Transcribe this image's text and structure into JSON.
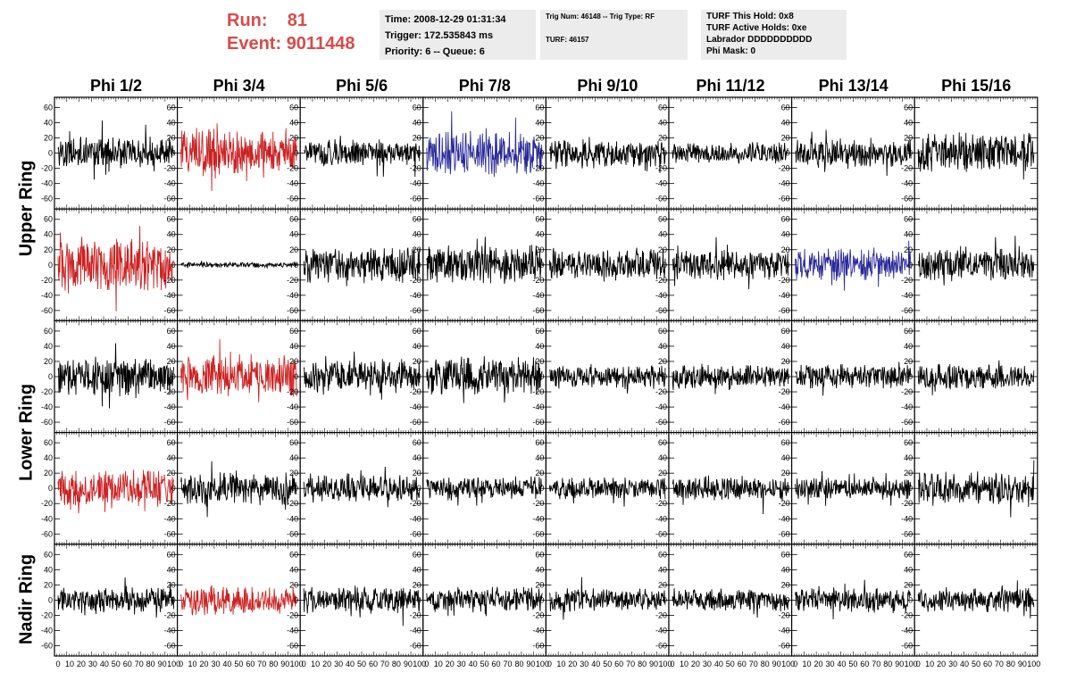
{
  "header": {
    "run_label": "Run:",
    "run_value": "81",
    "event_label": "Event:",
    "event_value": "9011448",
    "time_text": "Time: 2008-12-29 01:31:34",
    "trigger_text": "Trigger: 172.535843 ms",
    "priority_text": "Priority: 6 -- Queue: 6",
    "trig_num_text": "Trig Num: 46148 -- Trig Type: RF",
    "turf_text": "TURF: 46157",
    "turf_hold_text": "TURF This Hold: 0x8",
    "turf_active_text": "TURF Active Holds: 0xe",
    "labrador_text": "Labrador DDDDDDDDDD",
    "phi_mask_text": "Phi Mask: 0"
  },
  "colors": {
    "accent": "#d94a4a",
    "trace_default": "#000000",
    "trace_red": "#cc2222",
    "trace_blue": "#2a2a99",
    "info_bg": "#ececec"
  },
  "chart_data": {
    "type": "line",
    "columns": [
      "Phi 1/2",
      "Phi 3/4",
      "Phi 5/6",
      "Phi 7/8",
      "Phi 9/10",
      "Phi 11/12",
      "Phi 13/14",
      "Phi 15/16"
    ],
    "ring_labels": [
      "Upper Ring",
      "Lower Ring",
      "Nadir Ring"
    ],
    "ring_row_spans": [
      [
        0,
        1
      ],
      [
        2,
        3
      ],
      [
        4,
        4
      ]
    ],
    "ylim": [
      -70,
      70
    ],
    "xlim": [
      0,
      100
    ],
    "y_ticks": [
      -60,
      -40,
      -20,
      0,
      20,
      40,
      60
    ],
    "x_ticks": [
      0,
      10,
      20,
      30,
      40,
      50,
      60,
      70,
      80,
      90,
      100
    ],
    "grid": false,
    "panels": [
      [
        {
          "c": "k",
          "a": 18
        },
        {
          "c": "r",
          "a": 28
        },
        {
          "c": "k",
          "a": 15
        },
        {
          "c": "b",
          "a": 26
        },
        {
          "c": "k",
          "a": 17
        },
        {
          "c": "k",
          "a": 12
        },
        {
          "c": "k",
          "a": 16
        },
        {
          "c": "k",
          "a": 22
        }
      ],
      [
        {
          "c": "r",
          "a": 30
        },
        {
          "c": "k",
          "a": 3
        },
        {
          "c": "k",
          "a": 20
        },
        {
          "c": "k",
          "a": 22
        },
        {
          "c": "k",
          "a": 18
        },
        {
          "c": "k",
          "a": 17
        },
        {
          "c": "b",
          "a": 18
        },
        {
          "c": "k",
          "a": 20
        }
      ],
      [
        {
          "c": "k",
          "a": 22
        },
        {
          "c": "r",
          "a": 24
        },
        {
          "c": "k",
          "a": 20
        },
        {
          "c": "k",
          "a": 21
        },
        {
          "c": "k",
          "a": 13
        },
        {
          "c": "k",
          "a": 14
        },
        {
          "c": "k",
          "a": 14
        },
        {
          "c": "k",
          "a": 14
        }
      ],
      [
        {
          "c": "r",
          "a": 22
        },
        {
          "c": "k",
          "a": 18
        },
        {
          "c": "k",
          "a": 16
        },
        {
          "c": "k",
          "a": 13
        },
        {
          "c": "k",
          "a": 12
        },
        {
          "c": "k",
          "a": 14
        },
        {
          "c": "k",
          "a": 12
        },
        {
          "c": "k",
          "a": 18
        }
      ],
      [
        {
          "c": "k",
          "a": 15
        },
        {
          "c": "r",
          "a": 16
        },
        {
          "c": "k",
          "a": 14
        },
        {
          "c": "k",
          "a": 14
        },
        {
          "c": "k",
          "a": 13
        },
        {
          "c": "k",
          "a": 13
        },
        {
          "c": "k",
          "a": 14
        },
        {
          "c": "k",
          "a": 14
        }
      ]
    ]
  }
}
